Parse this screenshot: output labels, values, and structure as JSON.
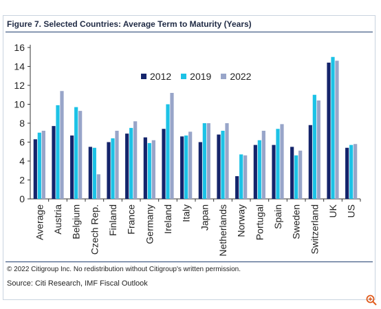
{
  "title": "Figure 7. Selected Countries: Average Term to Maturity (Years)",
  "footer": {
    "copyright": "© 2022 Citigroup Inc. No redistribution without Citigroup's written permission.",
    "source": "Source: Citi Research, IMF Fiscal Outlook"
  },
  "icons": {
    "zoom": "zoom-in-icon"
  },
  "chart_data": {
    "type": "bar",
    "title": "Figure 7. Selected Countries: Average Term to Maturity (Years)",
    "xlabel": "",
    "ylabel": "",
    "ylim": [
      0,
      16
    ],
    "yticks": [
      0,
      2,
      4,
      6,
      8,
      10,
      12,
      14,
      16
    ],
    "grid": false,
    "legend_position": "top-center",
    "categories": [
      "Average",
      "Austria",
      "Belgium",
      "Czech Rep.",
      "Finland",
      "France",
      "Germany",
      "Ireland",
      "Italy",
      "Japan",
      "Netherlands",
      "Norway",
      "Portugal",
      "Spain",
      "Sweden",
      "Switzerland",
      "UK",
      "US"
    ],
    "series": [
      {
        "name": "2012",
        "color": "#14246b",
        "values": [
          6.3,
          7.7,
          6.7,
          5.5,
          6.0,
          6.9,
          6.5,
          7.4,
          6.6,
          6.0,
          6.8,
          2.4,
          5.7,
          5.7,
          5.5,
          7.8,
          14.4,
          5.4
        ]
      },
      {
        "name": "2019",
        "color": "#1cc2e6",
        "values": [
          7.0,
          9.9,
          9.7,
          5.4,
          6.4,
          7.5,
          5.9,
          10.0,
          6.7,
          8.0,
          7.2,
          4.7,
          6.2,
          7.4,
          4.6,
          11.0,
          15.0,
          5.7
        ]
      },
      {
        "name": "2022",
        "color": "#98a5c9",
        "values": [
          7.2,
          11.4,
          9.3,
          2.6,
          7.2,
          8.2,
          6.2,
          11.2,
          7.1,
          8.0,
          8.0,
          4.6,
          7.2,
          7.9,
          5.1,
          10.4,
          14.6,
          5.8
        ]
      }
    ]
  }
}
